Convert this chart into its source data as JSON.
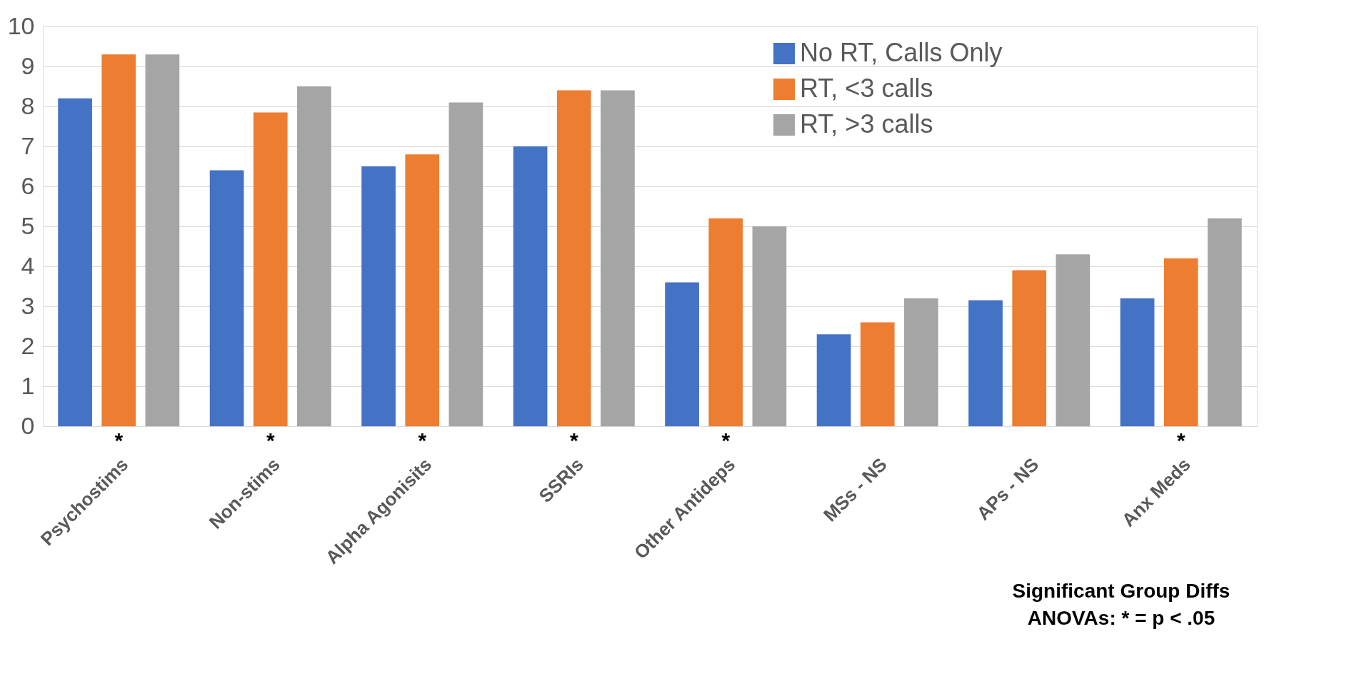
{
  "chart_data": {
    "type": "bar",
    "categories": [
      "Psychostims",
      "Non-stims",
      "Alpha Agonisits",
      "SSRIs",
      "Other Antideps",
      "MSs - NS",
      "APs - NS",
      "Anx Meds"
    ],
    "series": [
      {
        "name": "No RT,  Calls Only",
        "color": "#4472c4",
        "values": [
          8.2,
          6.4,
          6.5,
          7.0,
          3.6,
          2.3,
          3.15,
          3.2
        ]
      },
      {
        "name": "RT, <3 calls",
        "color": "#ed7d31",
        "values": [
          9.3,
          7.85,
          6.8,
          8.4,
          5.2,
          2.6,
          3.9,
          4.2
        ]
      },
      {
        "name": "RT, >3 calls",
        "color": "#a5a5a5",
        "values": [
          9.3,
          8.5,
          8.1,
          8.4,
          5.0,
          3.2,
          4.3,
          5.2
        ]
      }
    ],
    "ylim": [
      0,
      10
    ],
    "yticks": [
      0,
      1,
      2,
      3,
      4,
      5,
      6,
      7,
      8,
      9,
      10
    ],
    "grid": "y",
    "legend": "top right",
    "annotations": [
      {
        "text": "*",
        "x": "Psychostims",
        "y": 0
      },
      {
        "text": "*",
        "x": "Non-stims",
        "y": 0
      },
      {
        "text": "*",
        "x": "Alpha Agonisits",
        "y": 0
      },
      {
        "text": "*",
        "x": "SSRIs",
        "y": 0
      },
      {
        "text": "*",
        "x": "Other Antideps",
        "y": 0
      },
      {
        "text": "*",
        "x": "Anx Meds",
        "y": 0
      },
      "Significant Group Diffs",
      "ANOVAs: * = p < .05"
    ]
  }
}
